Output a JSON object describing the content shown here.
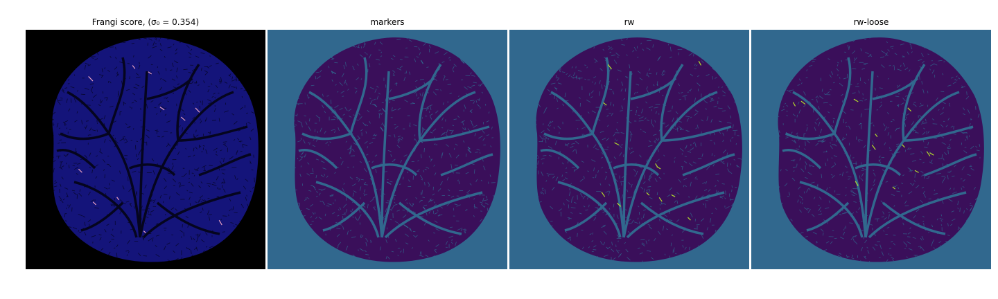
{
  "figure": {
    "panels": [
      {
        "id": "frangi",
        "title": "Frangi score, (σ₀ = 0.354)",
        "background": "#000000",
        "blob": "#14147a",
        "vessel": "#05051e",
        "accent": "#e8a0c0"
      },
      {
        "id": "markers",
        "title": "markers",
        "background": "#31688e",
        "blob": "#3a0f5a",
        "vessel": "#31688e",
        "accent": "#31688e"
      },
      {
        "id": "rw",
        "title": "rw",
        "background": "#31688e",
        "blob": "#3a0f5a",
        "vessel": "#31688e",
        "accent": "#b5de2b"
      },
      {
        "id": "rw-loose",
        "title": "rw-loose",
        "background": "#31688e",
        "blob": "#3a0f5a",
        "vessel": "#31688e",
        "accent": "#b5de2b"
      }
    ]
  }
}
